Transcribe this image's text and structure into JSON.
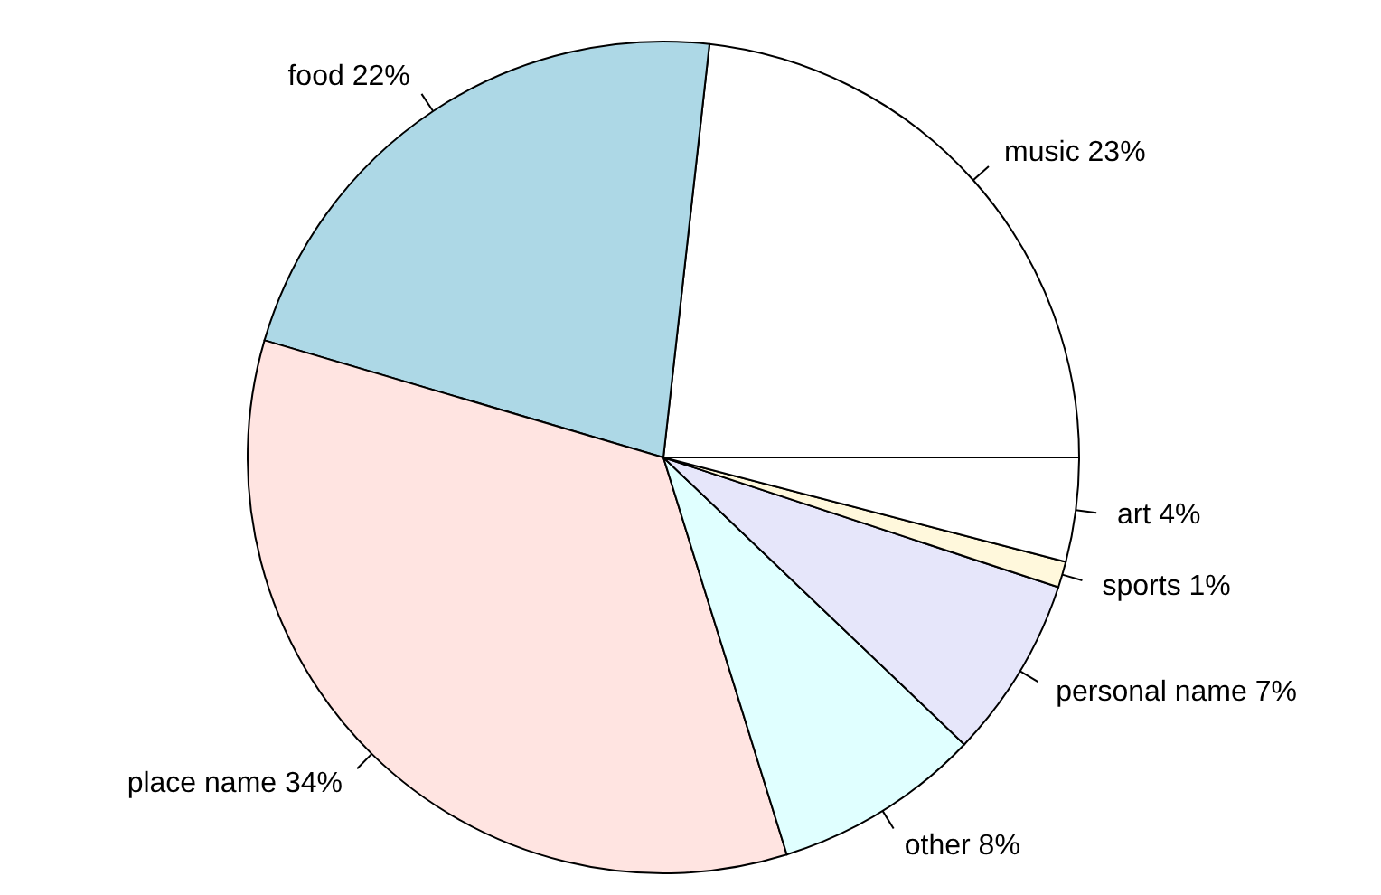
{
  "chart_data": {
    "type": "pie",
    "categories": [
      "music",
      "food",
      "place name",
      "other",
      "personal name",
      "sports",
      "art"
    ],
    "values": [
      23,
      22,
      34,
      8,
      7,
      1,
      4
    ],
    "value_labels": [
      "23%",
      "22%",
      "34%",
      "8%",
      "7%",
      "1%",
      "4%"
    ],
    "colors": [
      "#ffffff",
      "#add8e6",
      "#ffe4e1",
      "#e0ffff",
      "#e6e6fa",
      "#fff8dc",
      "#ffffff"
    ],
    "legend": false
  }
}
